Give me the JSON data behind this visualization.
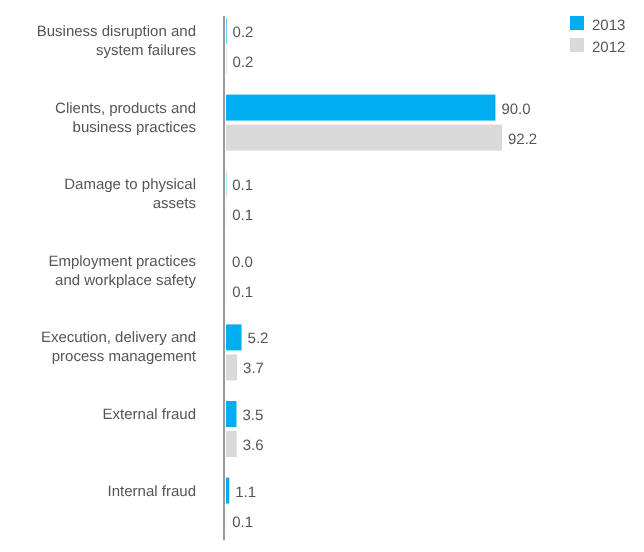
{
  "chart_data": {
    "type": "bar",
    "orientation": "horizontal",
    "categories": [
      "Business disruption and system failures",
      "Clients, products and business practices",
      "Damage to physical assets",
      "Employment practices and workplace safety",
      "Execution, delivery and process management",
      "External fraud",
      "Internal fraud"
    ],
    "series": [
      {
        "name": "2013",
        "color": "#00aeef",
        "values": [
          0.2,
          90.0,
          0.1,
          0.0,
          5.2,
          3.5,
          1.1
        ],
        "value_labels": [
          "0.2",
          "90.0",
          "0.1",
          "0.0",
          "5.2",
          "3.5",
          "1.1"
        ]
      },
      {
        "name": "2012",
        "color": "#d9d9d9",
        "values": [
          0.2,
          92.2,
          0.1,
          0.1,
          3.7,
          3.6,
          0.1
        ],
        "value_labels": [
          "0.2",
          "92.2",
          "0.1",
          "0.1",
          "3.7",
          "3.6",
          "0.1"
        ]
      }
    ],
    "tick_labels": "y",
    "legend": "top right"
  }
}
